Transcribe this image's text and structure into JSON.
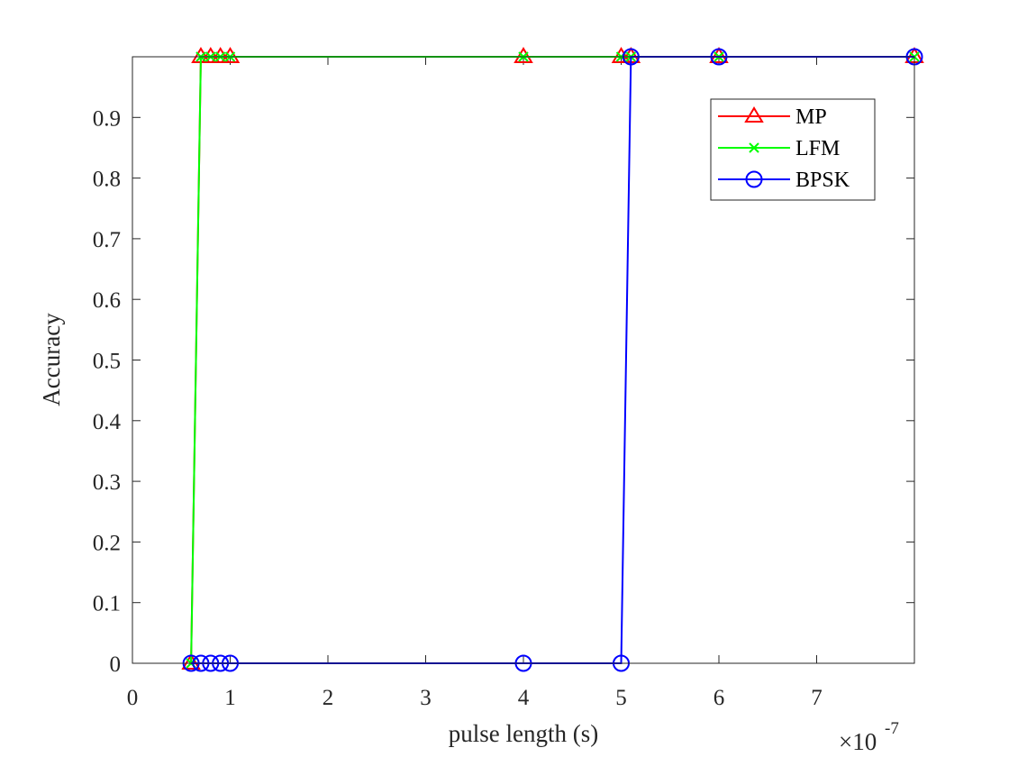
{
  "chart_data": {
    "type": "line",
    "title": "",
    "xlabel": "pulse length (s)",
    "ylabel": "Accuracy",
    "x_exponent_prefix": "×10",
    "x_exponent_power": "-7",
    "xlim": [
      0,
      8.0
    ],
    "ylim": [
      0,
      1.0
    ],
    "xticks": [
      0,
      1,
      2,
      3,
      4,
      5,
      6,
      7
    ],
    "xtick_labels": [
      "0",
      "1",
      "2",
      "3",
      "4",
      "5",
      "6",
      "7"
    ],
    "yticks": [
      0,
      0.1,
      0.2,
      0.3,
      0.4,
      0.5,
      0.6,
      0.7,
      0.8,
      0.9
    ],
    "ytick_labels": [
      "0",
      "0.1",
      "0.2",
      "0.3",
      "0.4",
      "0.5",
      "0.6",
      "0.7",
      "0.8",
      "0.9"
    ],
    "grid": false,
    "legend_position": "top-right",
    "series": [
      {
        "name": "MP",
        "color": "#ff0000",
        "marker": "triangle",
        "x": [
          0.6,
          0.7,
          0.8,
          0.9,
          1.0,
          4.0,
          5.0,
          5.1,
          6.0,
          8.0
        ],
        "y": [
          0,
          1,
          1,
          1,
          1,
          1,
          1,
          1,
          1,
          1
        ]
      },
      {
        "name": "LFM",
        "color": "#00ff00",
        "marker": "x",
        "x": [
          0.6,
          0.7,
          0.8,
          0.9,
          1.0,
          4.0,
          5.0,
          5.1,
          6.0,
          8.0
        ],
        "y": [
          0,
          1,
          1,
          1,
          1,
          1,
          1,
          1,
          1,
          1
        ]
      },
      {
        "name": "BPSK",
        "color": "#0000ff",
        "marker": "circle",
        "x": [
          0.6,
          0.7,
          0.8,
          0.9,
          1.0,
          4.0,
          5.0,
          5.1,
          6.0,
          8.0
        ],
        "y": [
          0,
          0,
          0,
          0,
          0,
          0,
          0,
          1,
          1,
          1
        ]
      }
    ]
  }
}
